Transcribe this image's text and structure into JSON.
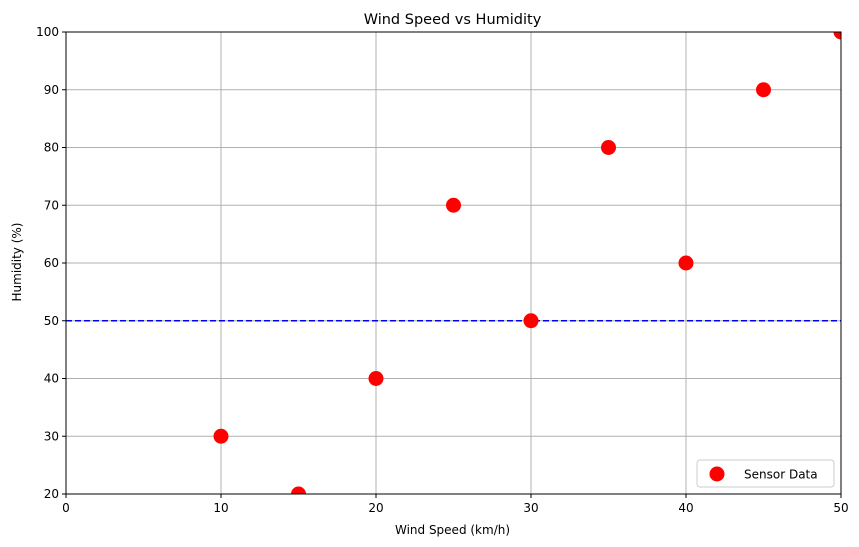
{
  "chart_data": {
    "type": "scatter",
    "title": "Wind Speed vs Humidity",
    "xlabel": "Wind Speed (km/h)",
    "ylabel": "Humidity (%)",
    "xlim": [
      0,
      50
    ],
    "ylim": [
      20,
      100
    ],
    "xticks": [
      0,
      10,
      20,
      30,
      40,
      50
    ],
    "yticks": [
      20,
      30,
      40,
      50,
      60,
      70,
      80,
      90,
      100
    ],
    "grid": true,
    "legend_position": "lower-right",
    "series": [
      {
        "name": "Sensor Data",
        "color": "#ff0000",
        "x": [
          10,
          15,
          20,
          25,
          30,
          35,
          40,
          45,
          50
        ],
        "y": [
          30,
          20,
          40,
          70,
          50,
          80,
          60,
          90,
          100
        ]
      }
    ],
    "reference_lines": [
      {
        "orientation": "horizontal",
        "y": 50,
        "color": "#0000ff",
        "style": "dashed"
      }
    ]
  }
}
